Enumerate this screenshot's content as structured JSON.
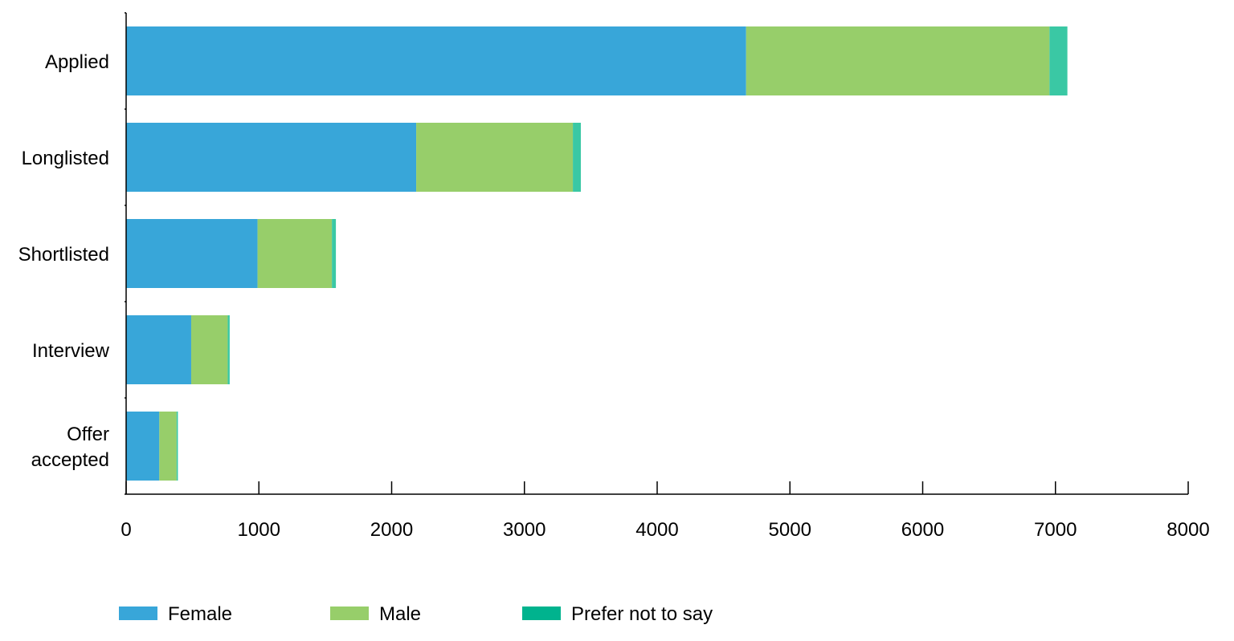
{
  "chart_data": {
    "type": "bar",
    "orientation": "horizontal",
    "stacked": true,
    "title": "",
    "xlabel": "",
    "ylabel": "",
    "categories": [
      "Applied",
      "Longlisted",
      "Shortlisted",
      "Interview",
      "Offer accepted"
    ],
    "category_lines": [
      [
        "Applied"
      ],
      [
        "Longlisted"
      ],
      [
        "Shortlisted"
      ],
      [
        "Interview"
      ],
      [
        "Offer",
        "accepted"
      ]
    ],
    "series": [
      {
        "name": "Female",
        "color": "#38a6d9",
        "values": [
          4670,
          2185,
          990,
          490,
          250
        ]
      },
      {
        "name": "Male",
        "color": "#97ce6a",
        "values": [
          2285,
          1180,
          560,
          275,
          130
        ]
      },
      {
        "name": "Prefer not to say",
        "color": "#3ac8a4",
        "values": [
          135,
          60,
          30,
          15,
          10
        ]
      }
    ],
    "legend_swatch_colors": [
      "#38a6d9",
      "#97ce6a",
      "#00b38e"
    ],
    "xlim": [
      0,
      8000
    ],
    "xticks": [
      0,
      1000,
      2000,
      3000,
      4000,
      5000,
      6000,
      7000,
      8000
    ],
    "grid": false,
    "legend_position": "bottom-left"
  }
}
